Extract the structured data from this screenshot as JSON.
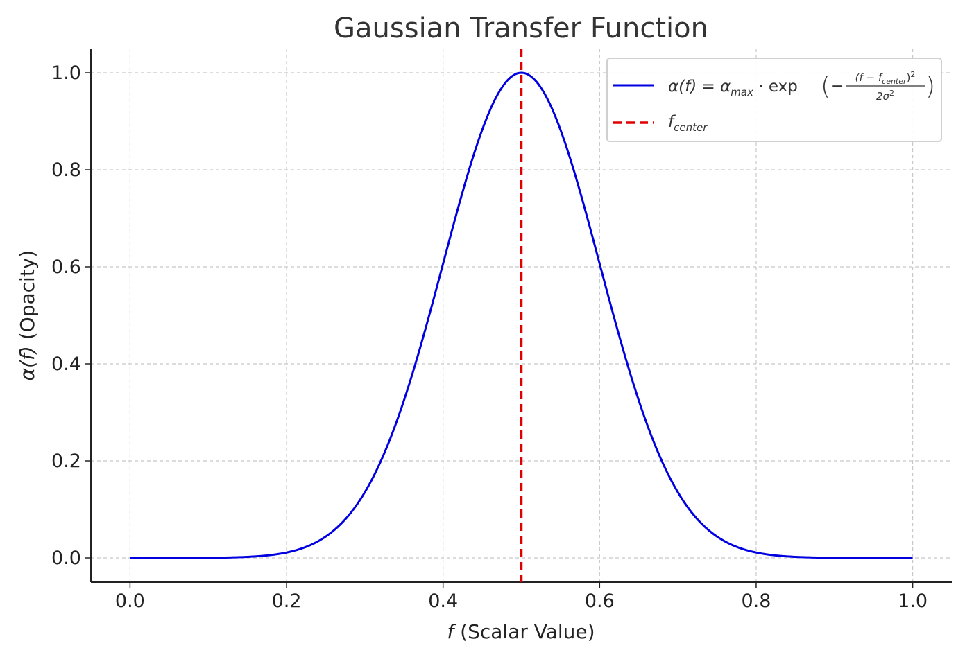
{
  "colors": {
    "curve": "#0000e0",
    "center_line": "#e00000",
    "grid": "#c8c8c8",
    "axis": "#222222"
  },
  "chart_data": {
    "type": "line",
    "title": "Gaussian Transfer Function",
    "xlabel": {
      "var": "f",
      "text": " (Scalar Value)"
    },
    "ylabel": {
      "var": "α(f)",
      "text": " (Opacity)"
    },
    "xlim": [
      -0.05,
      1.05
    ],
    "ylim": [
      -0.05,
      1.05
    ],
    "xticks": [
      0.0,
      0.2,
      0.4,
      0.6,
      0.8,
      1.0
    ],
    "yticks": [
      0.0,
      0.2,
      0.4,
      0.6,
      0.8,
      1.0
    ],
    "xtick_labels": [
      "0.0",
      "0.2",
      "0.4",
      "0.6",
      "0.8",
      "1.0"
    ],
    "ytick_labels": [
      "0.0",
      "0.2",
      "0.4",
      "0.6",
      "0.8",
      "1.0"
    ],
    "grid": true,
    "legend_position": "top-right",
    "series": [
      {
        "kind": "gaussian",
        "alpha_max": 1.0,
        "f_center": 0.5,
        "sigma": 0.1,
        "x_range": [
          0.0,
          1.0
        ]
      },
      {
        "kind": "vertical-line",
        "x": 0.5,
        "style": "dashed"
      }
    ],
    "legend": [
      {
        "lhs": "α(f) = α",
        "lhs_sub": "max",
        "op": " · exp",
        "num_pre": "(f − f",
        "num_sub": "center",
        "num_post": ")",
        "num_sup": "2",
        "den": "2σ",
        "den_sup": "2"
      },
      {
        "label": "f",
        "label_sub": "center"
      }
    ]
  }
}
